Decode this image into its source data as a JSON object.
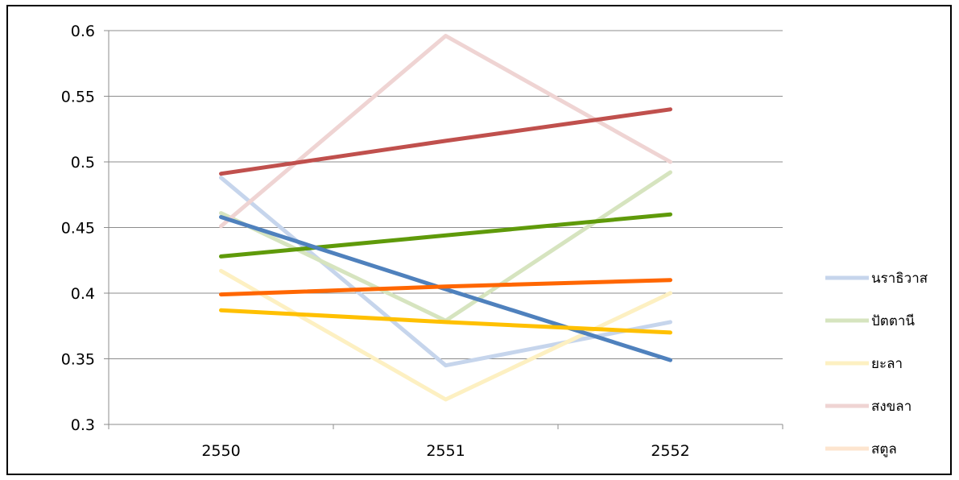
{
  "chart_data": {
    "type": "line",
    "title": "",
    "xlabel": "",
    "ylabel": "",
    "categories": [
      "2550",
      "2551",
      "2552"
    ],
    "ylim": [
      0.3,
      0.6
    ],
    "yticks": [
      0.3,
      0.35,
      0.4,
      0.45,
      0.5,
      0.55,
      0.6
    ],
    "ytick_labels": [
      "0.3",
      "0.35",
      "0.4",
      "0.45",
      "0.5",
      "0.55",
      "0.6"
    ],
    "grid": true,
    "legend_position": "right",
    "series": [
      {
        "name": "นราธิวาส",
        "values": [
          0.488,
          0.345,
          0.378
        ],
        "color": "#c6d5ec",
        "legend": true
      },
      {
        "name": "ปัตตานี",
        "values": [
          0.461,
          0.379,
          0.492
        ],
        "color": "#d6e4bf",
        "legend": true
      },
      {
        "name": "ยะลา",
        "values": [
          0.417,
          0.319,
          0.4
        ],
        "color": "#fdf0c2",
        "legend": true
      },
      {
        "name": "สงขลา",
        "values": [
          0.451,
          0.596,
          0.5
        ],
        "color": "#efd4d3",
        "legend": true
      },
      {
        "name": "สตูล",
        "values": [
          null,
          null,
          null
        ],
        "color": "#fde5cf",
        "legend": true
      },
      {
        "name": "",
        "values": [
          0.491,
          0.516,
          0.54
        ],
        "color": "#c0504d",
        "legend": false
      },
      {
        "name": "",
        "values": [
          0.428,
          0.444,
          0.46
        ],
        "color": "#5f9a0a",
        "legend": false
      },
      {
        "name": "",
        "values": [
          0.458,
          0.403,
          0.349
        ],
        "color": "#4f81bd",
        "legend": false
      },
      {
        "name": "",
        "values": [
          0.399,
          0.405,
          0.41
        ],
        "color": "#ff6600",
        "legend": false
      },
      {
        "name": "",
        "values": [
          0.387,
          0.378,
          0.37
        ],
        "color": "#ffc000",
        "legend": false
      }
    ]
  }
}
